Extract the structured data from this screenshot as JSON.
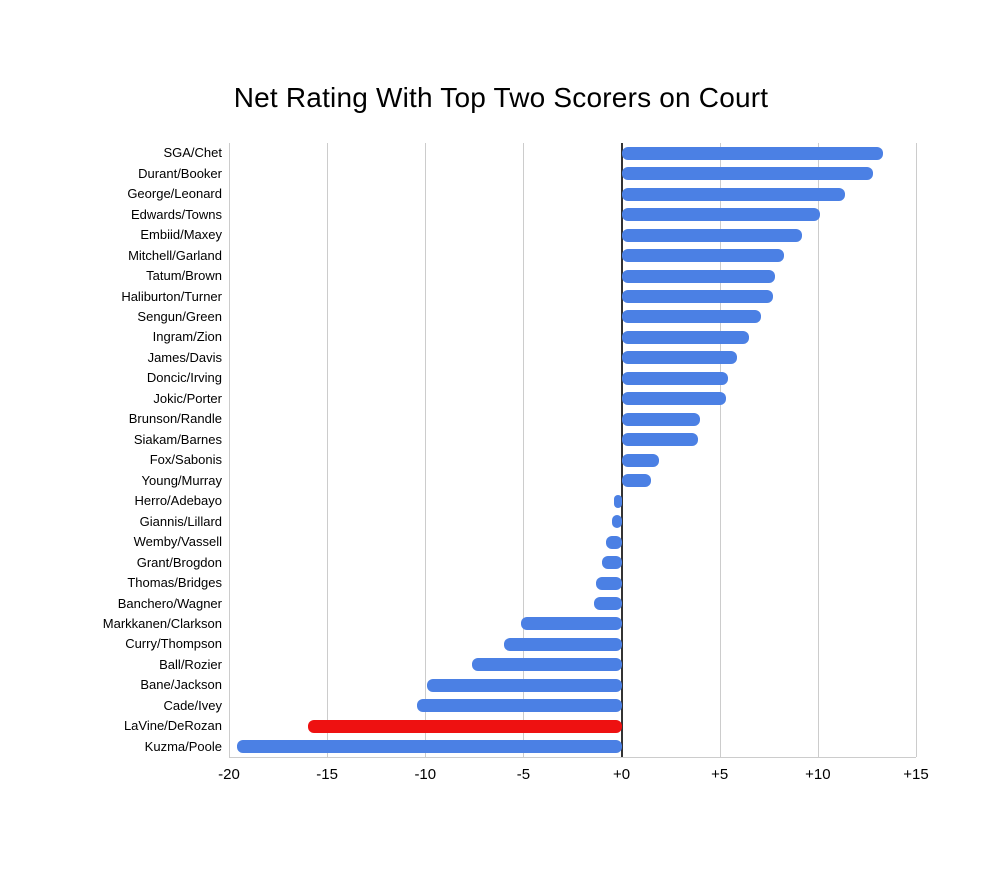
{
  "title": "Net Rating With Top Two Scorers on Court",
  "chart_data": {
    "type": "bar",
    "orientation": "horizontal",
    "title": "Net Rating With Top Two Scorers on Court",
    "xlabel": "",
    "ylabel": "",
    "xlim": [
      -20,
      15
    ],
    "grid": true,
    "zero_line": true,
    "legend": "none",
    "categories": [
      "SGA/Chet",
      "Durant/Booker",
      "George/Leonard",
      "Edwards/Towns",
      "Embiid/Maxey",
      "Mitchell/Garland",
      "Tatum/Brown",
      "Haliburton/Turner",
      "Sengun/Green",
      "Ingram/Zion",
      "James/Davis",
      "Doncic/Irving",
      "Jokic/Porter",
      "Brunson/Randle",
      "Siakam/Barnes",
      "Fox/Sabonis",
      "Young/Murray",
      "Herro/Adebayo",
      "Giannis/Lillard",
      "Wemby/Vassell",
      "Grant/Brogdon",
      "Thomas/Bridges",
      "Banchero/Wagner",
      "Markkanen/Clarkson",
      "Curry/Thompson",
      "Ball/Rozier",
      "Bane/Jackson",
      "Cade/Ivey",
      "LaVine/DeRozan",
      "Kuzma/Poole"
    ],
    "values": [
      13.3,
      12.8,
      11.4,
      10.1,
      9.2,
      8.3,
      7.8,
      7.7,
      7.1,
      6.5,
      5.9,
      5.4,
      5.3,
      4.0,
      3.9,
      1.9,
      1.5,
      -0.4,
      -0.5,
      -0.8,
      -1.0,
      -1.3,
      -1.4,
      -5.1,
      -6.0,
      -7.6,
      -9.9,
      -10.4,
      -16.0,
      -19.6
    ],
    "highlight_index": 28,
    "x_ticks": [
      -20,
      -15,
      -10,
      -5,
      0,
      5,
      10,
      15
    ],
    "x_tick_labels": [
      "-20",
      "-15",
      "-10",
      "-5",
      "+0",
      "+5",
      "+10",
      "+15"
    ]
  },
  "colors": {
    "bar_default": "#4b80e4",
    "bar_highlight": "#ee1111",
    "grid_line": "#cccccc",
    "zero_line": "#333333",
    "text": "#000000",
    "background": "#ffffff"
  }
}
